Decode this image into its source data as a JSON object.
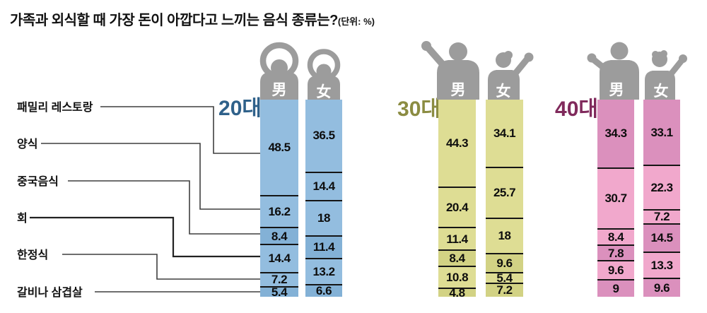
{
  "title": {
    "main": "가족과 외식할 때 가장 돈이 아깝다고 느끼는 음식 종류는?",
    "unit": "(단위: %)"
  },
  "categories": [
    "패밀리 레스토랑",
    "양식",
    "중국음식",
    "회",
    "한정식",
    "갈비나 삼겹살"
  ],
  "gender_labels": {
    "male": "男",
    "female": "女"
  },
  "colors": {
    "figure_gray": "#9c9c9c",
    "divider": "#151515",
    "connector": "#3f3f3f"
  },
  "chart_data": {
    "type": "bar",
    "stacked": true,
    "unit": "%",
    "orientation": "vertical",
    "categories": [
      "패밀리 레스토랑",
      "양식",
      "중국음식",
      "회",
      "한정식",
      "갈비나 삼겹살"
    ],
    "groups": [
      {
        "label": "20대",
        "label_color": "#2f618a",
        "bar_light": "#93bddf",
        "bar_dark": "#83b1d6",
        "series": [
          {
            "name": "男",
            "values": [
              48.5,
              16.2,
              8.4,
              14.4,
              7.2,
              5.4
            ],
            "shades": [
              0,
              0,
              1,
              0,
              0,
              1
            ]
          },
          {
            "name": "女",
            "values": [
              36.5,
              14.4,
              18,
              11.4,
              13.2,
              6.6
            ],
            "shades": [
              0,
              0,
              0,
              1,
              0,
              1
            ]
          }
        ]
      },
      {
        "label": "30대",
        "label_color": "#8b8c42",
        "bar_light": "#dedd94",
        "bar_dark": "#d2d284",
        "series": [
          {
            "name": "男",
            "values": [
              44.3,
              20.4,
              11.4,
              8.4,
              10.8,
              4.8
            ],
            "shades": [
              0,
              0,
              0,
              1,
              0,
              1
            ]
          },
          {
            "name": "女",
            "values": [
              34.1,
              25.7,
              18,
              9.6,
              5.4,
              7.2
            ],
            "shades": [
              0,
              0,
              0,
              1,
              0,
              1
            ]
          }
        ]
      },
      {
        "label": "40대",
        "label_color": "#802a5c",
        "bar_light": "#f1a8cc",
        "bar_dark": "#db90bd",
        "series": [
          {
            "name": "男",
            "values": [
              34.3,
              30.7,
              8.4,
              7.8,
              9.6,
              9
            ],
            "shades": [
              1,
              0,
              0,
              1,
              0,
              1
            ]
          },
          {
            "name": "女",
            "values": [
              33.1,
              22.3,
              7.2,
              14.5,
              13.3,
              9.6
            ],
            "shades": [
              1,
              0,
              0,
              1,
              0,
              1
            ]
          }
        ]
      }
    ]
  }
}
